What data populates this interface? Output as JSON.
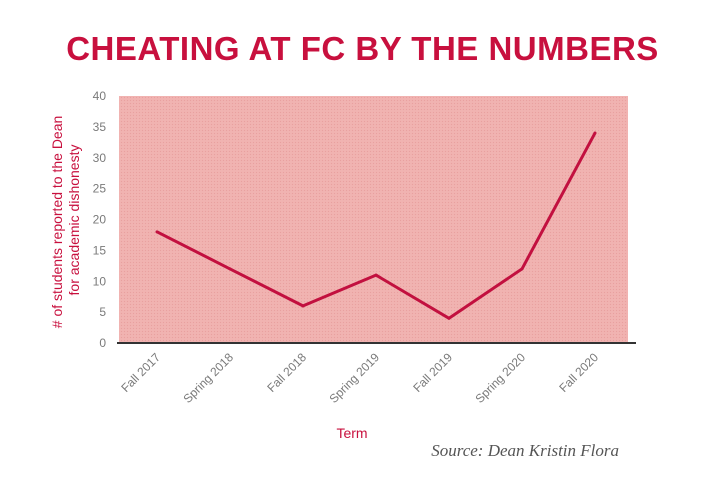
{
  "chart_data": {
    "type": "line",
    "title": "CHEATING AT FC BY THE NUMBERS",
    "xlabel": "Term",
    "ylabel_lines": [
      "# of students reported to the Dean",
      "for academic dishonesty"
    ],
    "categories": [
      "Fall 2017",
      "Spring 2018",
      "Fall 2018",
      "Spring 2019",
      "Fall 2019",
      "Spring 2020",
      "Fall 2020"
    ],
    "series": [
      {
        "values": [
          18,
          12,
          6,
          11,
          4,
          12,
          34
        ]
      }
    ],
    "ylim": [
      0,
      40
    ],
    "yticks": [
      0,
      5,
      10,
      15,
      20,
      25,
      30,
      35,
      40
    ],
    "grid": false,
    "source": "Source: Dean Kristin Flora",
    "colors": {
      "line": "#c2103f",
      "plot_bg": "#f1b3b1",
      "title": "#c8103e",
      "axis": "#333333"
    }
  }
}
